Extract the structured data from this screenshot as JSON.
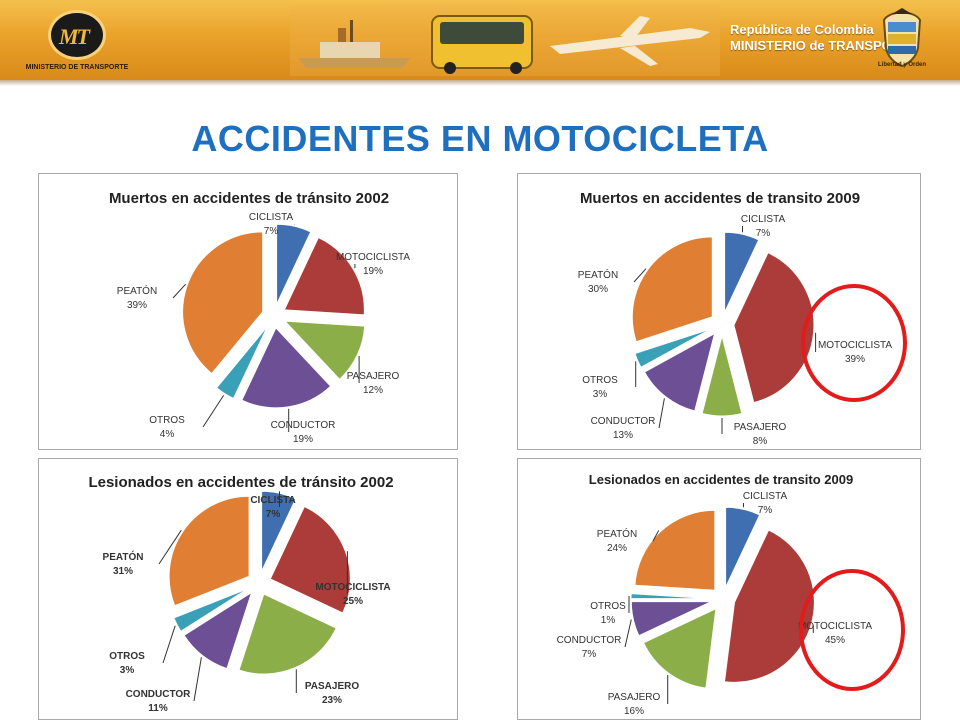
{
  "header": {
    "logo_text": "MINISTERIO DE TRANSPORTE",
    "country": "República de Colombia",
    "ministry": "MINISTERIO de TRANSPORTE",
    "motto": "Libertad y Orden",
    "banner_color": "#e9a22a"
  },
  "page_title": "ACCIDENTES EN MOTOCICLETA",
  "colors": {
    "CICLISTA": "#3f6fb0",
    "MOTOCICLISTA": "#ab3c39",
    "PASAJERO": "#8cae48",
    "CONDUCTOR": "#6c4f95",
    "OTROS": "#3aa0b8",
    "PEATÓN": "#e07f34",
    "highlight": "#e21b1b",
    "title": "#1f6fbf"
  },
  "chart_data": [
    {
      "type": "pie",
      "title": "Muertos en accidentes de tránsito 2002",
      "categories": [
        "CICLISTA",
        "MOTOCICLISTA",
        "PASAJERO",
        "CONDUCTOR",
        "OTROS",
        "PEATÓN"
      ],
      "values": [
        7,
        19,
        12,
        19,
        4,
        39
      ],
      "labels": [
        "7%",
        "19%",
        "12%",
        "19%",
        "4%",
        "39%"
      ],
      "exploded": true,
      "highlight": null
    },
    {
      "type": "pie",
      "title": "Muertos en accidentes de transito 2009",
      "categories": [
        "CICLISTA",
        "MOTOCICLISTA",
        "PASAJERO",
        "CONDUCTOR",
        "OTROS",
        "PEATÓN"
      ],
      "values": [
        7,
        39,
        8,
        13,
        3,
        30
      ],
      "labels": [
        "7%",
        "39%",
        "8%",
        "13%",
        "3%",
        "30%"
      ],
      "exploded": true,
      "highlight": "MOTOCICLISTA"
    },
    {
      "type": "pie",
      "title": "Lesionados en accidentes de tránsito 2002",
      "categories": [
        "CICLISTA",
        "MOTOCICLISTA",
        "PASAJERO",
        "CONDUCTOR",
        "OTROS",
        "PEATÓN"
      ],
      "values": [
        7,
        25,
        23,
        11,
        3,
        31
      ],
      "labels": [
        "7%",
        "25%",
        "23%",
        "11%",
        "3%",
        "31%"
      ],
      "exploded": true,
      "highlight": null
    },
    {
      "type": "pie",
      "title": "Lesionados  en accidentes de transito 2009",
      "categories": [
        "CICLISTA",
        "MOTOCICLISTA",
        "PASAJERO",
        "CONDUCTOR",
        "OTROS",
        "PEATÓN"
      ],
      "values": [
        7,
        45,
        16,
        7,
        1,
        24
      ],
      "labels": [
        "7%",
        "45%",
        "16%",
        "7%",
        "1%",
        "24%"
      ],
      "exploded": true,
      "highlight": "MOTOCICLISTA"
    }
  ]
}
